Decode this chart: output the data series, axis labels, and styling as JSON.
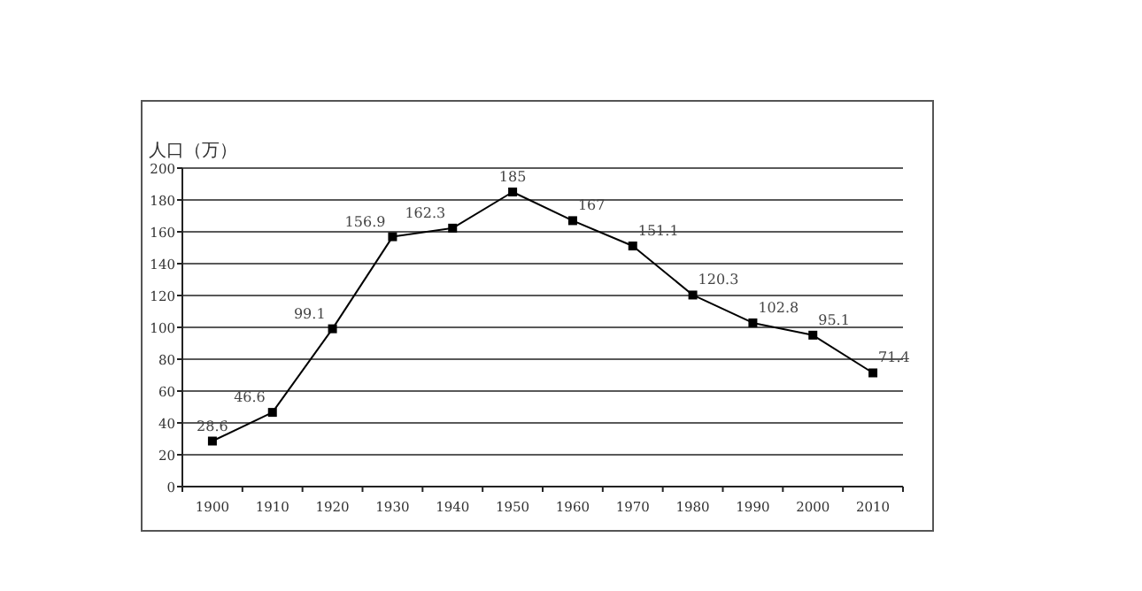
{
  "chart_data": {
    "type": "line",
    "ylabel": "人口（万）",
    "categories": [
      "1900",
      "1910",
      "1920",
      "1930",
      "1940",
      "1950",
      "1960",
      "1970",
      "1980",
      "1990",
      "2000",
      "2010"
    ],
    "values": [
      28.6,
      46.6,
      99.1,
      156.9,
      162.3,
      185,
      167,
      151.1,
      120.3,
      102.8,
      95.1,
      71.4
    ],
    "color": "#000000",
    "ylim": [
      0,
      200
    ],
    "yticks": [
      0,
      20,
      40,
      60,
      80,
      100,
      120,
      140,
      160,
      180,
      200
    ],
    "grid": "y",
    "marker": "square",
    "line_style": "solid",
    "data_labels": true
  }
}
